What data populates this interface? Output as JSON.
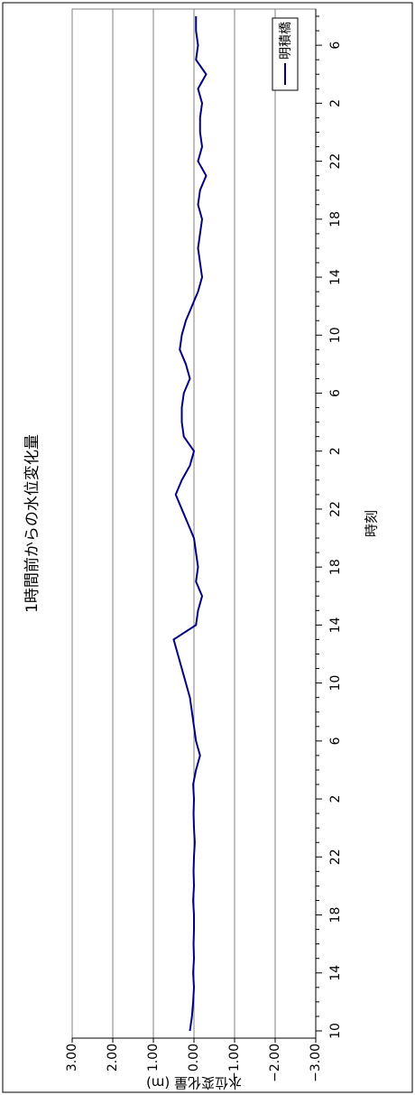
{
  "chart_data": {
    "type": "line",
    "title": "1時間前からの水位変化量",
    "x_label": "時刻",
    "y_label": "水位変化量 (m)",
    "categories": [
      "10",
      null,
      null,
      null,
      "14",
      null,
      null,
      null,
      "18",
      null,
      null,
      null,
      "22",
      null,
      null,
      null,
      "2",
      null,
      null,
      null,
      "6",
      null,
      null,
      null,
      "10",
      null,
      null,
      null,
      "14",
      null,
      null,
      null,
      "18",
      null,
      null,
      null,
      "22",
      null,
      null,
      null,
      "2",
      null,
      null,
      null,
      "6",
      null,
      null,
      null,
      "10",
      null,
      null,
      null,
      "14",
      null,
      null,
      null,
      "18",
      null,
      null,
      null,
      "22",
      null,
      null,
      null,
      "2",
      null,
      null,
      null,
      "6",
      null,
      null
    ],
    "series": [
      {
        "name": "明積橋",
        "color": "#000080",
        "values": [
          0.1,
          0.05,
          0.02,
          0.0,
          0.02,
          0.0,
          0.01,
          0.0,
          0.0,
          0.02,
          0.0,
          0.01,
          0.0,
          -0.02,
          0.0,
          0.01,
          0.0,
          0.02,
          -0.05,
          -0.15,
          -0.05,
          0.0,
          0.05,
          0.1,
          0.2,
          0.3,
          0.4,
          0.5,
          -0.05,
          -0.1,
          -0.2,
          -0.05,
          -0.1,
          -0.05,
          0.0,
          0.15,
          0.3,
          0.45,
          0.3,
          0.1,
          0.0,
          0.25,
          0.3,
          0.3,
          0.25,
          0.1,
          0.2,
          0.35,
          0.3,
          0.2,
          0.05,
          -0.1,
          -0.2,
          -0.15,
          -0.1,
          -0.15,
          -0.2,
          -0.1,
          -0.15,
          -0.3,
          -0.1,
          -0.2,
          -0.15,
          -0.15,
          -0.2,
          -0.1,
          -0.3,
          -0.05,
          -0.1,
          -0.05,
          -0.05
        ]
      }
    ],
    "ylim": [
      -3,
      3
    ],
    "yticks": [
      {
        "value": 3,
        "label": "3.00"
      },
      {
        "value": 2,
        "label": "2.00"
      },
      {
        "value": 1,
        "label": "1.00"
      },
      {
        "value": 0,
        "label": "0.00"
      },
      {
        "value": -1,
        "label": "−1.00"
      },
      {
        "value": -2,
        "label": "−2.00"
      },
      {
        "value": -3,
        "label": "−3.00"
      }
    ],
    "grid": true,
    "legend": "lower right"
  }
}
